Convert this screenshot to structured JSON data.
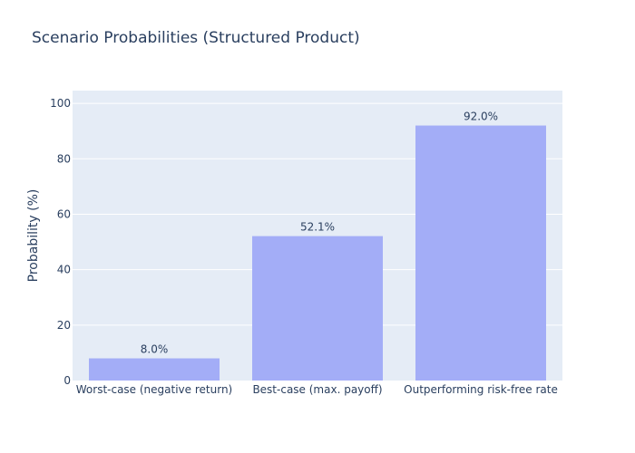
{
  "chart_data": {
    "type": "bar",
    "title": "Scenario Probabilities (Structured Product)",
    "xlabel": "",
    "ylabel": "Probability (%)",
    "categories": [
      "Worst-case (negative return)",
      "Best-case (max. payoff)",
      "Outperforming risk-free rate"
    ],
    "values": [
      8.0,
      52.1,
      92.0
    ],
    "data_labels": [
      "8.0%",
      "52.1%",
      "92.0%"
    ],
    "ylim": [
      0,
      100
    ],
    "yticks": [
      0,
      20,
      40,
      60,
      80,
      100
    ],
    "grid": true,
    "legend": "none",
    "colors": {
      "bar": "#a3adf7",
      "plot_bg": "#e5ecf6",
      "grid": "#ffffff",
      "text": "#2a3f5f"
    }
  }
}
